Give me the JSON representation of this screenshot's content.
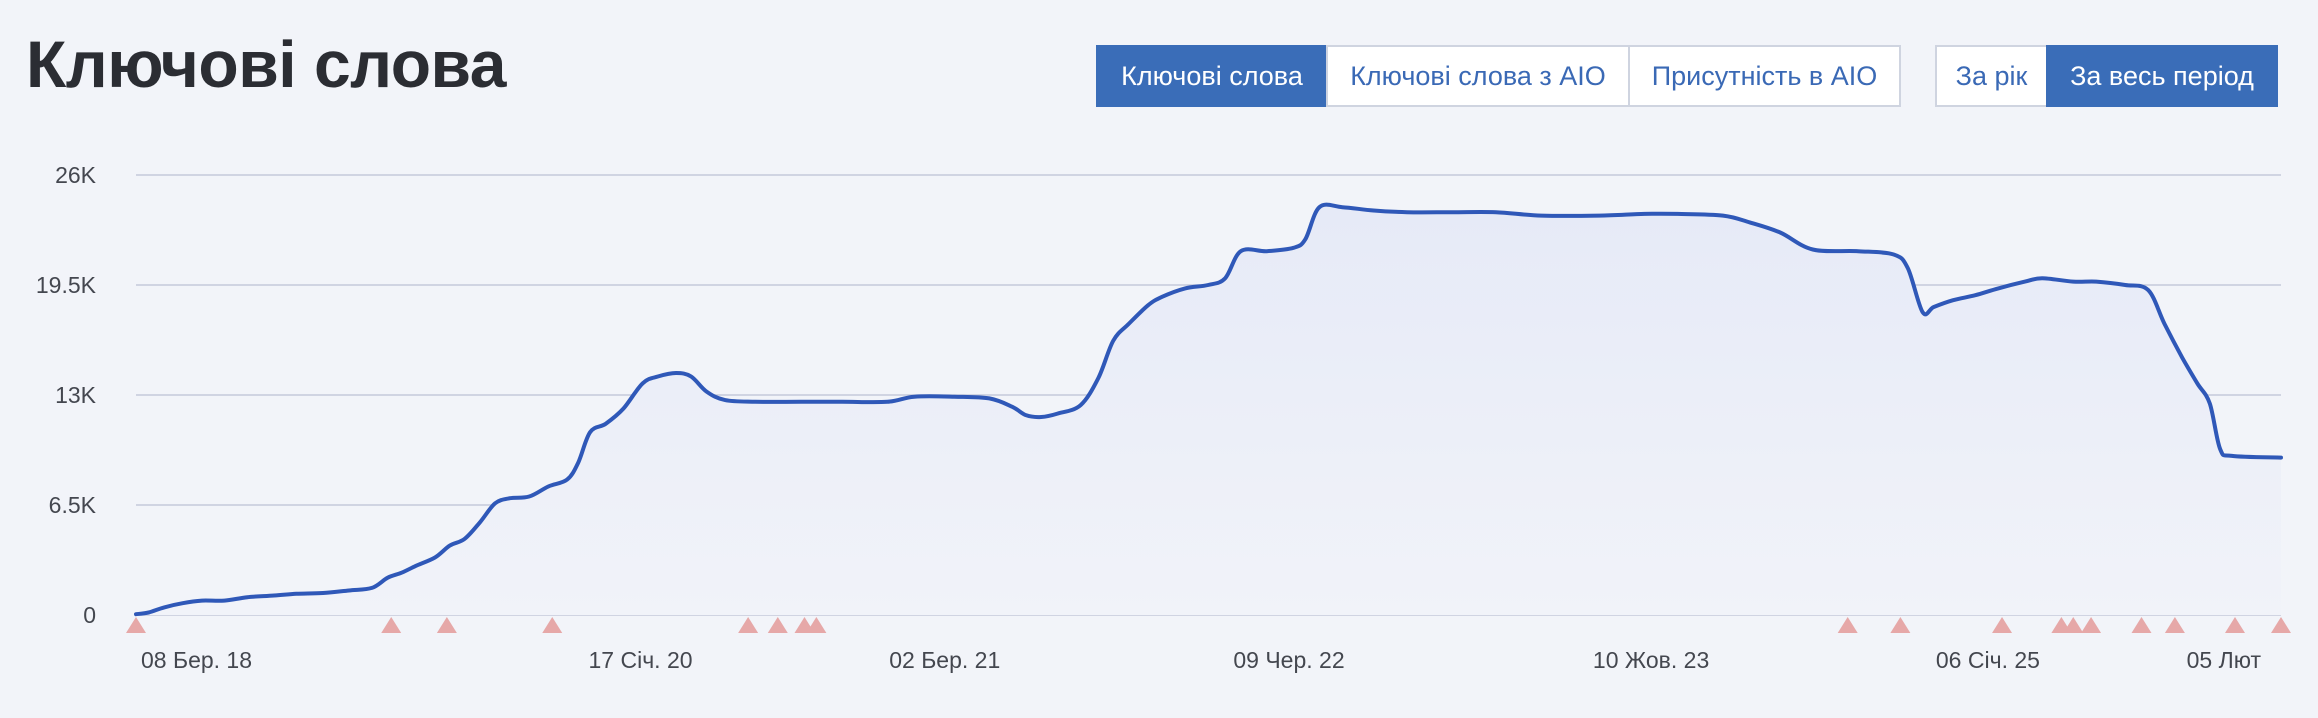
{
  "header": {
    "title": "Ключові слова",
    "metric_tabs": [
      {
        "label": "Ключові слова",
        "active": true
      },
      {
        "label": "Ключові слова з AIO",
        "active": false
      },
      {
        "label": "Присутність в AIO",
        "active": false
      }
    ],
    "period_tabs": [
      {
        "label": "За рік",
        "active": false
      },
      {
        "label": "За весь період",
        "active": true
      }
    ]
  },
  "colors": {
    "line": "#2f58b8",
    "area_top": "#e6eaf7",
    "area_bottom": "#f1f3f9",
    "grid": "#c5cadb",
    "marker": "#e6a8a8",
    "active_button": "#3a6db8",
    "button_text": "#3a69b5"
  },
  "chart_data": {
    "type": "area",
    "title": "",
    "xlabel": "",
    "ylabel": "",
    "ylim": [
      0,
      26000
    ],
    "xlim": [
      "2018-03-08",
      "2026-02-05"
    ],
    "grid": true,
    "y_ticks": [
      {
        "value": 0,
        "label": "0"
      },
      {
        "value": 6500,
        "label": "6.5K"
      },
      {
        "value": 13000,
        "label": "13K"
      },
      {
        "value": 19500,
        "label": "19.5K"
      },
      {
        "value": 26000,
        "label": "26K"
      }
    ],
    "x_ticks": [
      {
        "date": "2018-03-08",
        "label": "08 Бер. 18"
      },
      {
        "date": "2020-01-17",
        "label": "17 Січ. 20"
      },
      {
        "date": "2021-03-02",
        "label": "02 Бер. 21"
      },
      {
        "date": "2022-06-09",
        "label": "09 Чер. 22"
      },
      {
        "date": "2023-10-10",
        "label": "10 Жов. 23"
      },
      {
        "date": "2025-01-06",
        "label": "06 Січ. 25"
      },
      {
        "date": "2026-02-05",
        "label": "05 Лют"
      }
    ],
    "series": [
      {
        "points": [
          [
            "2018-03-08",
            50
          ],
          [
            "2018-03-25",
            150
          ],
          [
            "2018-04-15",
            450
          ],
          [
            "2018-05-10",
            700
          ],
          [
            "2018-06-05",
            850
          ],
          [
            "2018-07-05",
            850
          ],
          [
            "2018-08-05",
            1050
          ],
          [
            "2018-09-10",
            1150
          ],
          [
            "2018-10-10",
            1250
          ],
          [
            "2018-11-15",
            1300
          ],
          [
            "2018-12-20",
            1450
          ],
          [
            "2019-01-20",
            1600
          ],
          [
            "2019-02-10",
            2200
          ],
          [
            "2019-03-01",
            2500
          ],
          [
            "2019-03-20",
            2900
          ],
          [
            "2019-04-15",
            3400
          ],
          [
            "2019-05-05",
            4100
          ],
          [
            "2019-05-25",
            4500
          ],
          [
            "2019-06-15",
            5500
          ],
          [
            "2019-07-05",
            6600
          ],
          [
            "2019-07-25",
            6900
          ],
          [
            "2019-08-20",
            7000
          ],
          [
            "2019-09-15",
            7600
          ],
          [
            "2019-10-10",
            8000
          ],
          [
            "2019-10-25",
            9000
          ],
          [
            "2019-11-10",
            10800
          ],
          [
            "2019-12-01",
            11300
          ],
          [
            "2019-12-25",
            12200
          ],
          [
            "2020-01-20",
            13700
          ],
          [
            "2020-02-10",
            14100
          ],
          [
            "2020-03-05",
            14300
          ],
          [
            "2020-03-25",
            14100
          ],
          [
            "2020-04-15",
            13200
          ],
          [
            "2020-05-10",
            12700
          ],
          [
            "2020-06-20",
            12600
          ],
          [
            "2020-08-20",
            12600
          ],
          [
            "2020-10-15",
            12600
          ],
          [
            "2020-12-15",
            12600
          ],
          [
            "2021-01-20",
            12900
          ],
          [
            "2021-03-15",
            12900
          ],
          [
            "2021-05-01",
            12800
          ],
          [
            "2021-06-01",
            12300
          ],
          [
            "2021-06-20",
            11800
          ],
          [
            "2021-07-10",
            11700
          ],
          [
            "2021-08-01",
            11900
          ],
          [
            "2021-09-01",
            12400
          ],
          [
            "2021-09-25",
            14000
          ],
          [
            "2021-10-15",
            16200
          ],
          [
            "2021-11-05",
            17200
          ],
          [
            "2021-12-01",
            18300
          ],
          [
            "2021-12-20",
            18800
          ],
          [
            "2022-01-20",
            19300
          ],
          [
            "2022-02-20",
            19500
          ],
          [
            "2022-03-15",
            19900
          ],
          [
            "2022-04-05",
            21500
          ],
          [
            "2022-05-10",
            21500
          ],
          [
            "2022-06-15",
            21700
          ],
          [
            "2022-07-01",
            22200
          ],
          [
            "2022-07-20",
            24100
          ],
          [
            "2022-08-20",
            24100
          ],
          [
            "2022-10-01",
            23900
          ],
          [
            "2022-11-15",
            23800
          ],
          [
            "2023-01-15",
            23800
          ],
          [
            "2023-03-15",
            23800
          ],
          [
            "2023-05-15",
            23600
          ],
          [
            "2023-08-01",
            23600
          ],
          [
            "2023-10-01",
            23700
          ],
          [
            "2023-11-15",
            23700
          ],
          [
            "2024-01-15",
            23600
          ],
          [
            "2024-02-20",
            23200
          ],
          [
            "2024-04-01",
            22600
          ],
          [
            "2024-05-15",
            21600
          ],
          [
            "2024-07-15",
            21500
          ],
          [
            "2024-09-01",
            21300
          ],
          [
            "2024-09-20",
            20500
          ],
          [
            "2024-10-10",
            17900
          ],
          [
            "2024-10-25",
            18200
          ],
          [
            "2024-11-20",
            18600
          ],
          [
            "2024-12-20",
            18900
          ],
          [
            "2025-01-20",
            19300
          ],
          [
            "2025-02-25",
            19700
          ],
          [
            "2025-03-20",
            19900
          ],
          [
            "2025-05-01",
            19700
          ],
          [
            "2025-06-01",
            19700
          ],
          [
            "2025-07-10",
            19500
          ],
          [
            "2025-08-10",
            19200
          ],
          [
            "2025-09-01",
            17200
          ],
          [
            "2025-09-25",
            15200
          ],
          [
            "2025-10-15",
            13700
          ],
          [
            "2025-11-01",
            12500
          ],
          [
            "2025-11-15",
            9800
          ],
          [
            "2025-12-01",
            9400
          ],
          [
            "2026-02-05",
            9300
          ]
        ]
      }
    ],
    "event_markers": [
      "2018-03-08",
      "2019-02-15",
      "2019-05-01",
      "2019-09-20",
      "2020-06-10",
      "2020-07-20",
      "2020-08-25",
      "2020-09-10",
      "2024-07-01",
      "2024-09-10",
      "2025-01-25",
      "2025-04-15",
      "2025-05-01",
      "2025-05-25",
      "2025-08-01",
      "2025-09-15",
      "2025-12-05",
      "2026-02-05"
    ]
  }
}
